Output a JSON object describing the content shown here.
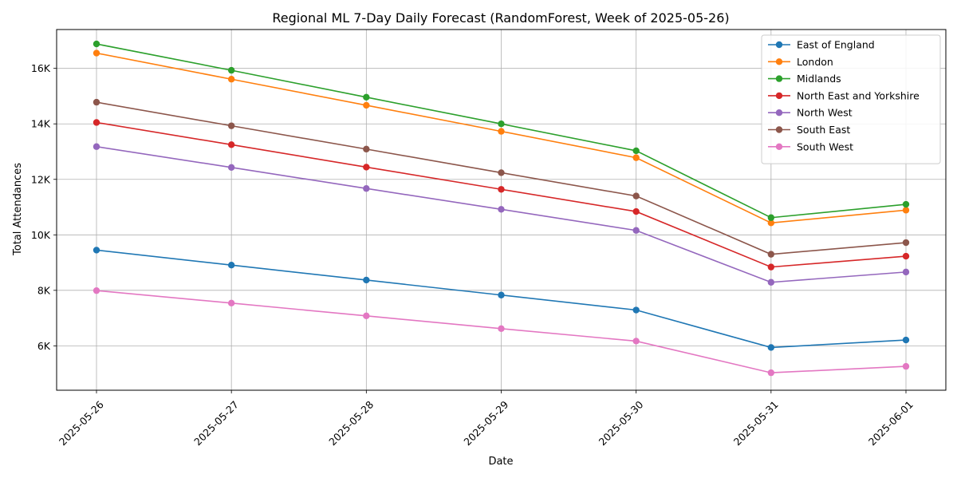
{
  "chart_data": {
    "type": "line",
    "title": "Regional ML 7-Day Daily Forecast (RandomForest, Week of 2025-05-26)",
    "xlabel": "Date",
    "ylabel": "Total Attendances",
    "categories": [
      "2025-05-26",
      "2025-05-27",
      "2025-05-28",
      "2025-05-29",
      "2025-05-30",
      "2025-05-31",
      "2025-06-01"
    ],
    "ylim": [
      4400,
      17400
    ],
    "yticks": [
      6000,
      8000,
      10000,
      12000,
      14000,
      16000
    ],
    "ytick_labels": [
      "6K",
      "8K",
      "10K",
      "12K",
      "14K",
      "16K"
    ],
    "grid": true,
    "legend_position": "top-right",
    "series": [
      {
        "name": "East of England",
        "color": "#1f77b4",
        "values": [
          9450,
          8910,
          8370,
          7830,
          7290,
          5940,
          6210
        ]
      },
      {
        "name": "London",
        "color": "#ff7f0e",
        "values": [
          16550,
          15610,
          14670,
          13730,
          12780,
          10430,
          10890
        ]
      },
      {
        "name": "Midlands",
        "color": "#2ca02c",
        "values": [
          16880,
          15930,
          14960,
          14000,
          13030,
          10620,
          11100
        ]
      },
      {
        "name": "North East and Yorkshire",
        "color": "#d62728",
        "values": [
          14050,
          13250,
          12440,
          11640,
          10840,
          8840,
          9230
        ]
      },
      {
        "name": "North West",
        "color": "#9467bd",
        "values": [
          13180,
          12430,
          11670,
          10920,
          10160,
          8290,
          8660
        ]
      },
      {
        "name": "South East",
        "color": "#8c564b",
        "values": [
          14780,
          13930,
          13090,
          12240,
          11400,
          9300,
          9720
        ]
      },
      {
        "name": "South West",
        "color": "#e377c2",
        "values": [
          7990,
          7540,
          7080,
          6620,
          6170,
          5030,
          5260
        ]
      }
    ]
  }
}
